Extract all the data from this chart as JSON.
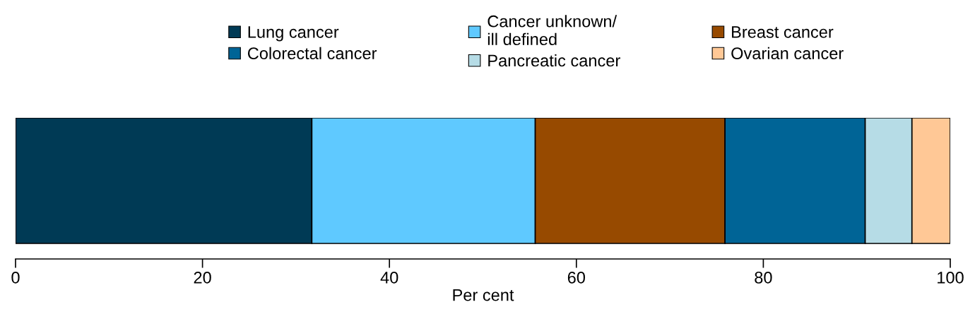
{
  "chart_data": {
    "type": "bar",
    "orientation": "horizontal",
    "stacked": true,
    "xlabel": "Per cent",
    "categories": [
      null
    ],
    "series": [
      {
        "name": "Lung cancer",
        "color": "#003a55",
        "values": [
          31.7
        ]
      },
      {
        "name": "Cancer unknown/\nill defined",
        "color": "#5fc9ff",
        "values": [
          23.9
        ]
      },
      {
        "name": "Breast cancer",
        "color": "#974a00",
        "values": [
          20.3
        ]
      },
      {
        "name": "Colorectal cancer",
        "color": "#006496",
        "values": [
          15.0
        ]
      },
      {
        "name": "Pancreatic cancer",
        "color": "#b6dce6",
        "values": [
          5.0
        ]
      },
      {
        "name": "Ovarian cancer",
        "color": "#ffc896",
        "values": [
          4.1
        ]
      }
    ],
    "xlim": [
      0,
      100
    ],
    "xticks": [
      0,
      20,
      40,
      60,
      80,
      100
    ],
    "tick_labels": "x",
    "grid": false,
    "legend": "top"
  }
}
